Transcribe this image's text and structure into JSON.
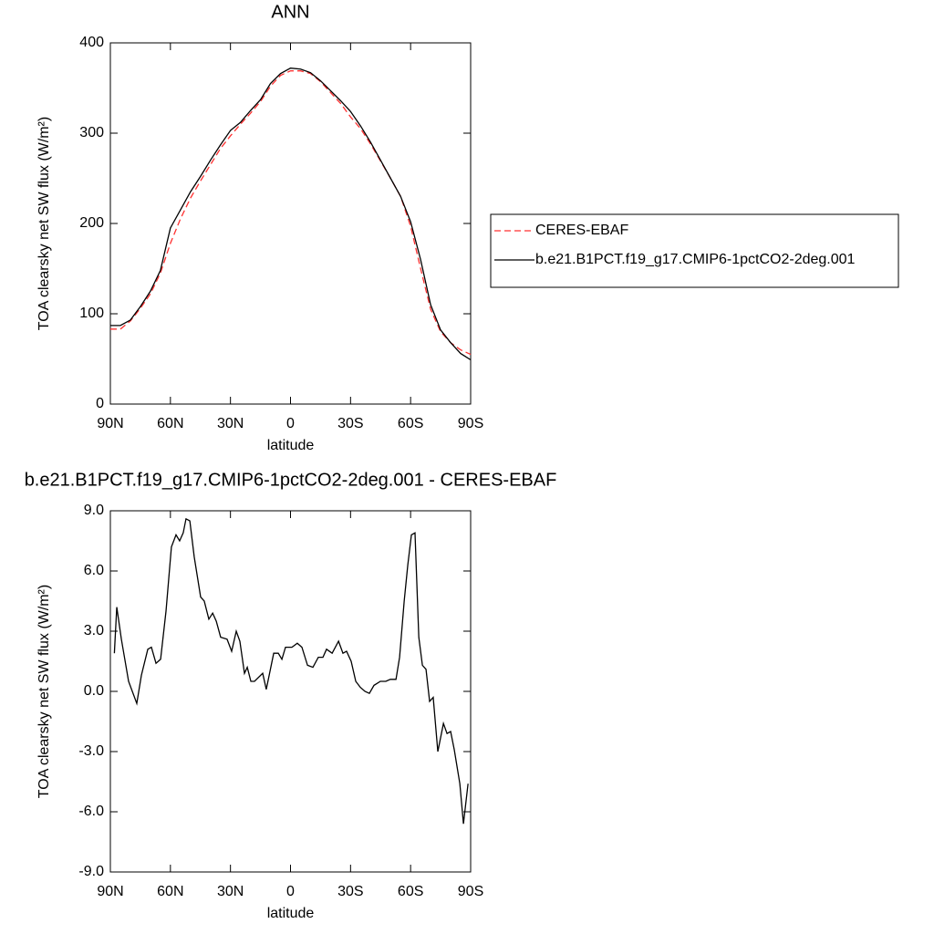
{
  "chart_data": [
    {
      "type": "line",
      "title": "ANN",
      "xlabel": "latitude",
      "ylabel": "TOA clearsky net SW flux (W/m²)",
      "x": [
        90,
        85,
        80,
        75,
        70,
        65,
        60,
        55,
        50,
        45,
        40,
        35,
        30,
        25,
        20,
        15,
        10,
        5,
        0,
        -5,
        -10,
        -15,
        -20,
        -25,
        -30,
        -35,
        -40,
        -45,
        -50,
        -55,
        -60,
        -65,
        -70,
        -75,
        -80,
        -85,
        -90
      ],
      "series": [
        {
          "name": "CERES-EBAF",
          "color": "#ff3030",
          "style": "dashed",
          "values": [
            83,
            83,
            92,
            106,
            122,
            145,
            178,
            205,
            228,
            247,
            265,
            283,
            297,
            310,
            322,
            335,
            352,
            364,
            369,
            369,
            366,
            357,
            345,
            333,
            318,
            305,
            288,
            269,
            250,
            230,
            197,
            150,
            105,
            80,
            68,
            60,
            55
          ]
        },
        {
          "name": "b.e21.B1PCT.f19_g17.CMIP6-1pctCO2-2deg.001",
          "color": "#000000",
          "style": "solid",
          "values": [
            87,
            87,
            93,
            108,
            125,
            148,
            195,
            215,
            235,
            252,
            270,
            287,
            303,
            312,
            325,
            337,
            355,
            366,
            372,
            371,
            367,
            358,
            347,
            336,
            324,
            308,
            290,
            270,
            250,
            230,
            202,
            160,
            110,
            82,
            68,
            56,
            49
          ]
        }
      ],
      "xlim": [
        90,
        -90
      ],
      "xticks": [
        {
          "value": 90,
          "label": "90N"
        },
        {
          "value": 60,
          "label": "60N"
        },
        {
          "value": 30,
          "label": "30N"
        },
        0,
        {
          "value": -30,
          "label": "30S"
        },
        {
          "value": -60,
          "label": "60S"
        },
        {
          "value": -90,
          "label": "90S"
        }
      ],
      "ylim": [
        0,
        400
      ],
      "yticks": [
        0,
        100,
        200,
        300,
        400
      ],
      "legend": "right"
    },
    {
      "type": "line",
      "title": "b.e21.B1PCT.f19_g17.CMIP6-1pctCO2-2deg.001 - CERES-EBAF",
      "xlabel": "latitude",
      "ylabel": "TOA clearsky net SW flux (W/m²)",
      "x": [
        88,
        86.8,
        84.5,
        80.9,
        76.8,
        74.5,
        71.3,
        69.5,
        67.2,
        64.9,
        62.2,
        59.5,
        57.2,
        55.4,
        53.6,
        52.2,
        50.3,
        48.1,
        44.9,
        43.1,
        40.8,
        38.9,
        37.1,
        34.9,
        31.7,
        29.4,
        27.1,
        25.3,
        23,
        21.6,
        19.8,
        18,
        13.9,
        12.1,
        8.4,
        6.1,
        4.3,
        2.5,
        -0.7,
        -3.4,
        -5.7,
        -8.5,
        -11.2,
        -13.9,
        -16.2,
        -18,
        -20.8,
        -24,
        -26.2,
        -28,
        -30.3,
        -32.6,
        -34.9,
        -37.2,
        -39.4,
        -41.7,
        -44.9,
        -47.6,
        -49.9,
        -52.7,
        -54.5,
        -56.8,
        -58.6,
        -60.4,
        -62.2,
        -64.1,
        -65.9,
        -67.7,
        -69.5,
        -71.3,
        -73.6,
        -76.4,
        -78.2,
        -80,
        -81.8,
        -84.6,
        -86.4,
        -88.7
      ],
      "color": "#000000",
      "values": [
        1.9,
        4.2,
        2.6,
        0.5,
        -0.6,
        0.8,
        2.1,
        2.2,
        1.4,
        1.6,
        4.0,
        7.2,
        7.8,
        7.5,
        7.9,
        8.6,
        8.5,
        6.7,
        4.7,
        4.5,
        3.6,
        3.9,
        3.5,
        2.7,
        2.6,
        2.0,
        3.0,
        2.5,
        0.9,
        1.2,
        0.5,
        0.5,
        0.9,
        0.1,
        1.9,
        1.9,
        1.6,
        2.2,
        2.2,
        2.4,
        2.2,
        1.3,
        1.2,
        1.7,
        1.7,
        2.1,
        1.9,
        2.5,
        1.9,
        2.0,
        1.5,
        0.5,
        0.2,
        0.0,
        -0.1,
        0.3,
        0.5,
        0.5,
        0.6,
        0.6,
        1.7,
        4.5,
        6.3,
        7.8,
        7.9,
        2.7,
        1.3,
        1.1,
        -0.5,
        -0.3,
        -3.0,
        -1.6,
        -2.1,
        -2.0,
        -2.9,
        -4.6,
        -6.6,
        -4.6
      ],
      "xlim": [
        90,
        -90
      ],
      "xticks": [
        {
          "value": 90,
          "label": "90N"
        },
        {
          "value": 60,
          "label": "60N"
        },
        {
          "value": 30,
          "label": "30N"
        },
        0,
        {
          "value": -30,
          "label": "30S"
        },
        {
          "value": -60,
          "label": "60S"
        },
        {
          "value": -90,
          "label": "90S"
        }
      ],
      "ylim": [
        -9,
        9
      ],
      "yticks": [
        {
          "value": -9,
          "label": "-9.0"
        },
        {
          "value": -6,
          "label": "-6.0"
        },
        {
          "value": -3,
          "label": "-3.0"
        },
        {
          "value": 0,
          "label": "0.0"
        },
        {
          "value": 3,
          "label": "3.0"
        },
        {
          "value": 6,
          "label": "6.0"
        },
        {
          "value": 9,
          "label": "9.0"
        }
      ]
    }
  ]
}
